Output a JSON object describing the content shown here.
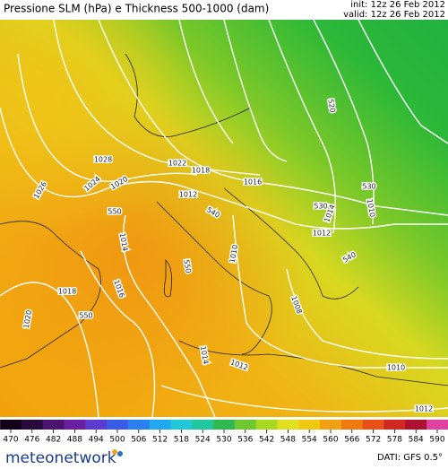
{
  "header": {
    "title": "Pressione SLM (hPa) e Thickness 500-1000 (dam)",
    "init": "init: 12z 26 Feb 2012",
    "valid": "valid: 12z 26 Feb 2012"
  },
  "map": {
    "labels": [
      "1028",
      "1026",
      "1024",
      "1020",
      "1022",
      "1018",
      "1012",
      "1016",
      "1014",
      "1010",
      "530",
      "530",
      "540",
      "550",
      "1012",
      "540",
      "1010",
      "1014",
      "1016",
      "1018",
      "550",
      "1008",
      "550",
      "1020",
      "1014",
      "1012",
      "1010",
      "1012",
      "520"
    ]
  },
  "colorbar": {
    "ticks": [
      470,
      476,
      482,
      488,
      494,
      500,
      506,
      512,
      518,
      524,
      530,
      536,
      542,
      548,
      554,
      560,
      566,
      572,
      578,
      584,
      590
    ],
    "colors": [
      "#12001a",
      "#2a0a3c",
      "#4a1470",
      "#6a1fa0",
      "#5a3cd0",
      "#3a5ae8",
      "#2a80f0",
      "#20a8f0",
      "#20c8d8",
      "#20c8a0",
      "#30b850",
      "#70c830",
      "#a8d820",
      "#e0e020",
      "#f0c810",
      "#f0a010",
      "#f07a10",
      "#e85018",
      "#d02820",
      "#b01030",
      "#e040a0"
    ]
  },
  "footer": {
    "logo": "meteonetwork",
    "source": "DATI: GFS 0.5°"
  }
}
